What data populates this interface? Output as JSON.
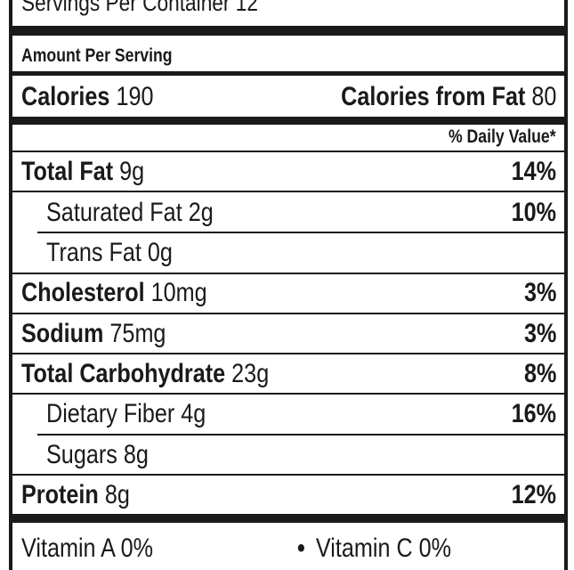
{
  "servings": {
    "label": "Servings Per Container",
    "value": "12"
  },
  "amount_per_serving": "Amount Per Serving",
  "calories": {
    "label": "Calories",
    "value": "190",
    "from_fat_label": "Calories from Fat",
    "from_fat_value": "80"
  },
  "daily_value_header": "% Daily Value*",
  "nutrients": [
    {
      "label": "Total Fat",
      "amount": "9g",
      "dv": "14%"
    },
    {
      "label": "Saturated Fat",
      "amount": "2g",
      "dv": "10%"
    },
    {
      "label": "Trans Fat",
      "amount": "0g",
      "dv": ""
    },
    {
      "label": "Cholesterol",
      "amount": "10mg",
      "dv": "3%"
    },
    {
      "label": "Sodium",
      "amount": "75mg",
      "dv": "3%"
    },
    {
      "label": "Total Carbohydrate",
      "amount": "23g",
      "dv": "8%"
    },
    {
      "label": "Dietary Fiber",
      "amount": "4g",
      "dv": "16%"
    },
    {
      "label": "Sugars",
      "amount": "8g",
      "dv": ""
    },
    {
      "label": "Protein",
      "amount": "8g",
      "dv": "12%"
    }
  ],
  "vitamins": [
    {
      "label": "Vitamin A",
      "value": "0%"
    },
    {
      "label": "Vitamin C",
      "value": "0%"
    }
  ]
}
